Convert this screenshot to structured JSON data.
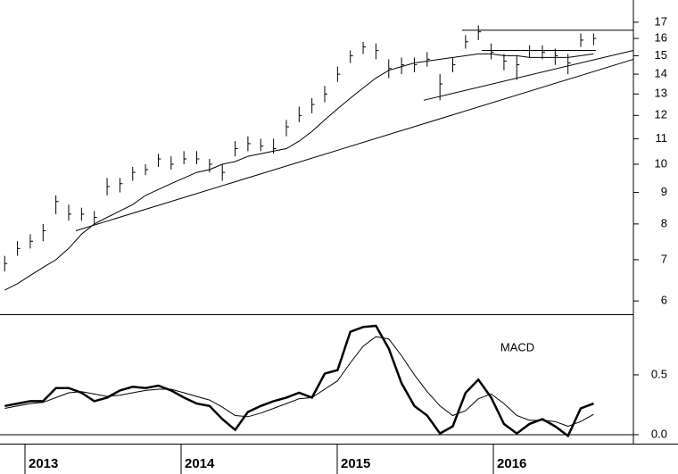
{
  "chart_data": [
    {
      "type": "hlc",
      "color": "#000",
      "log_scale": true,
      "x": [
        2012.87,
        2012.952,
        2013.034,
        2013.116,
        2013.198,
        2013.28,
        2013.362,
        2013.444,
        2013.526,
        2013.608,
        2013.69,
        2013.772,
        2013.854,
        2013.936,
        2014.018,
        2014.1,
        2014.182,
        2014.264,
        2014.346,
        2014.428,
        2014.51,
        2014.592,
        2014.674,
        2014.756,
        2014.838,
        2014.92,
        2015.002,
        2015.084,
        2015.166,
        2015.248,
        2015.33,
        2015.412,
        2015.494,
        2015.576,
        2015.658,
        2015.74,
        2015.822,
        2015.904,
        2015.986,
        2016.068,
        2016.15,
        2016.232,
        2016.314,
        2016.396,
        2016.478,
        2016.56,
        2016.642
      ],
      "high": [
        7.1,
        7.5,
        7.7,
        8.0,
        8.9,
        8.6,
        8.5,
        8.4,
        9.5,
        9.5,
        9.9,
        10.0,
        10.4,
        10.3,
        10.5,
        10.5,
        10.2,
        10.0,
        10.9,
        11.1,
        11.0,
        11.0,
        11.8,
        12.4,
        12.8,
        13.4,
        14.4,
        15.3,
        15.8,
        15.7,
        14.8,
        14.9,
        14.9,
        15.2,
        14.0,
        14.9,
        16.2,
        16.8,
        15.7,
        15.1,
        15.0,
        15.6,
        15.6,
        15.4,
        15.1,
        16.3,
        16.3
      ],
      "low": [
        6.7,
        7.1,
        7.3,
        7.5,
        8.3,
        8.1,
        8.1,
        8.0,
        8.9,
        9.0,
        9.4,
        9.6,
        9.9,
        9.8,
        10.0,
        10.0,
        9.7,
        9.4,
        10.3,
        10.5,
        10.5,
        10.4,
        11.1,
        11.7,
        12.1,
        12.6,
        13.6,
        14.6,
        15.1,
        14.8,
        13.8,
        14.0,
        14.1,
        14.4,
        12.7,
        14.1,
        15.4,
        15.9,
        14.8,
        14.2,
        13.7,
        14.9,
        14.8,
        14.5,
        14.0,
        15.5,
        15.6
      ],
      "close": [
        6.9,
        7.3,
        7.5,
        7.8,
        8.7,
        8.3,
        8.3,
        8.2,
        9.2,
        9.3,
        9.7,
        9.8,
        10.2,
        10.0,
        10.2,
        10.2,
        10.0,
        9.7,
        10.6,
        10.8,
        10.7,
        10.6,
        11.5,
        12.0,
        12.5,
        13.0,
        14.0,
        15.0,
        15.5,
        15.3,
        14.3,
        14.5,
        14.5,
        14.8,
        13.5,
        14.5,
        15.8,
        16.4,
        15.2,
        14.7,
        14.5,
        15.3,
        15.2,
        15.0,
        14.6,
        15.9,
        16.0
      ],
      "ma": [
        6.25,
        6.4,
        6.6,
        6.8,
        7.0,
        7.3,
        7.7,
        8.0,
        8.2,
        8.4,
        8.6,
        8.9,
        9.1,
        9.3,
        9.5,
        9.7,
        9.8,
        10.0,
        10.1,
        10.3,
        10.4,
        10.5,
        10.6,
        10.9,
        11.3,
        11.8,
        12.3,
        12.8,
        13.3,
        13.8,
        14.2,
        14.4,
        14.6,
        14.7,
        14.8,
        14.9,
        15.0,
        15.1,
        15.1,
        15.0,
        15.0,
        14.9,
        14.9,
        14.9,
        14.9,
        15.0,
        15.1
      ],
      "trendlines": [
        {
          "x": [
            2013.326,
            2016.897
          ],
          "y": [
            7.8,
            14.8
          ]
        },
        {
          "x": [
            2015.554,
            2016.897
          ],
          "y": [
            12.7,
            15.3
          ]
        },
        {
          "x": [
            2015.8,
            2016.897
          ],
          "y": [
            16.5,
            16.5
          ]
        },
        {
          "x": [
            2015.926,
            2016.657
          ],
          "y": [
            15.3,
            15.3
          ]
        }
      ],
      "xlim": [
        2012.84,
        2016.897
      ],
      "ylim": [
        5.71,
        18.47
      ],
      "yticks": [
        6,
        7,
        8,
        9,
        10,
        11,
        12,
        13,
        14,
        15,
        16,
        17
      ]
    },
    {
      "type": "line",
      "title": "MACD",
      "x": [
        2012.87,
        2012.952,
        2013.034,
        2013.116,
        2013.198,
        2013.28,
        2013.362,
        2013.444,
        2013.526,
        2013.608,
        2013.69,
        2013.772,
        2013.854,
        2013.936,
        2014.018,
        2014.1,
        2014.182,
        2014.264,
        2014.346,
        2014.428,
        2014.51,
        2014.592,
        2014.674,
        2014.756,
        2014.838,
        2014.92,
        2015.002,
        2015.084,
        2015.166,
        2015.248,
        2015.33,
        2015.412,
        2015.494,
        2015.576,
        2015.658,
        2015.74,
        2015.822,
        2015.904,
        2015.986,
        2016.068,
        2016.15,
        2016.232,
        2016.314,
        2016.396,
        2016.478,
        2016.56,
        2016.642
      ],
      "macd": [
        0.24,
        0.26,
        0.28,
        0.28,
        0.39,
        0.39,
        0.35,
        0.28,
        0.31,
        0.37,
        0.4,
        0.39,
        0.41,
        0.37,
        0.31,
        0.26,
        0.24,
        0.13,
        0.04,
        0.19,
        0.24,
        0.28,
        0.31,
        0.35,
        0.31,
        0.51,
        0.54,
        0.86,
        0.9,
        0.91,
        0.72,
        0.43,
        0.24,
        0.16,
        0.01,
        0.07,
        0.35,
        0.46,
        0.31,
        0.09,
        0.01,
        0.09,
        0.13,
        0.07,
        -0.01,
        0.22,
        0.26
      ],
      "signal": [
        0.22,
        0.24,
        0.26,
        0.27,
        0.31,
        0.35,
        0.36,
        0.34,
        0.32,
        0.33,
        0.35,
        0.37,
        0.38,
        0.38,
        0.35,
        0.32,
        0.29,
        0.23,
        0.16,
        0.15,
        0.18,
        0.22,
        0.26,
        0.3,
        0.31,
        0.38,
        0.45,
        0.6,
        0.74,
        0.82,
        0.8,
        0.66,
        0.5,
        0.36,
        0.24,
        0.16,
        0.2,
        0.3,
        0.34,
        0.26,
        0.16,
        0.12,
        0.12,
        0.11,
        0.07,
        0.11,
        0.17
      ],
      "color": "#000",
      "xlim": [
        2012.84,
        2016.897
      ],
      "ylim": [
        -0.075,
        1.007
      ],
      "yticks": [
        {
          "value": 0,
          "label": "0.0"
        },
        0.5
      ],
      "xticks": [
        2013,
        2014,
        2015,
        2016
      ]
    }
  ]
}
